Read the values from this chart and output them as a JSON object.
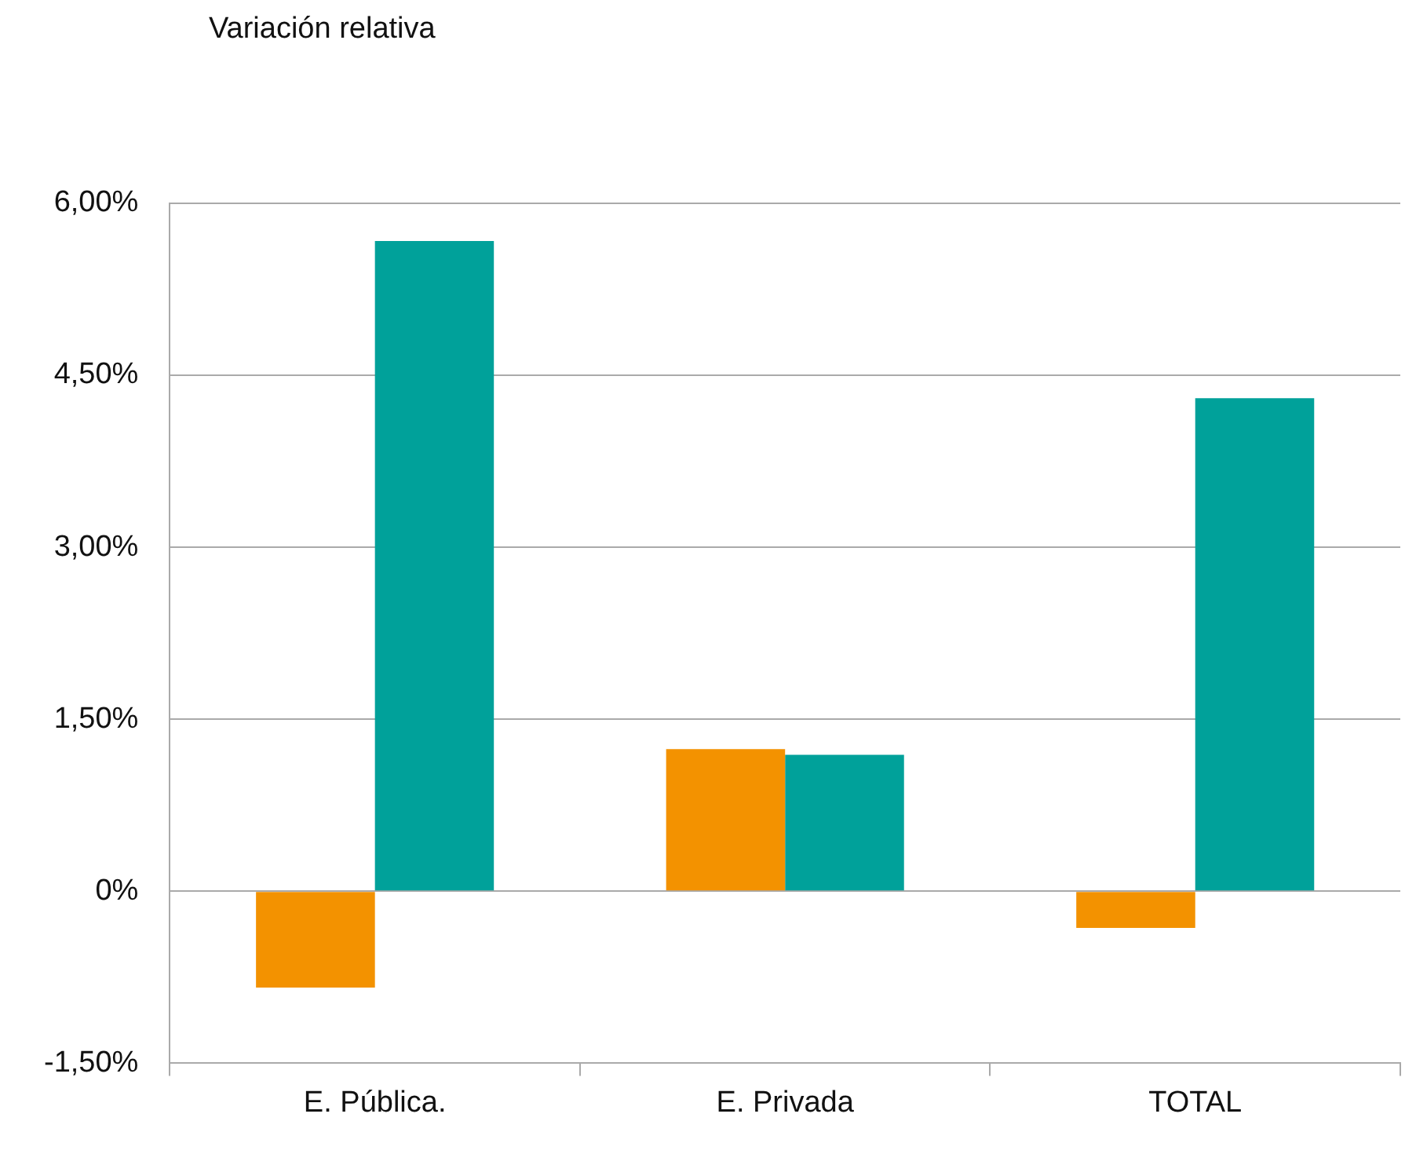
{
  "chart_data": {
    "type": "bar",
    "title": "Variación relativa",
    "categories": [
      "E. Pública.",
      "E. Privada",
      "TOTAL"
    ],
    "series": [
      {
        "color": "#f39200",
        "values": [
          -0.84,
          1.24,
          -0.32
        ]
      },
      {
        "color": "#00a19a",
        "values": [
          5.67,
          1.19,
          4.3
        ]
      }
    ],
    "ylim": [
      -1.5,
      6
    ],
    "yticks": [
      {
        "value": -1.5,
        "label": "-1,50%"
      },
      {
        "value": 0,
        "label": "0%"
      },
      {
        "value": 1.5,
        "label": "1,50%"
      },
      {
        "value": 3,
        "label": "3,00%"
      },
      {
        "value": 4.5,
        "label": "4,50%"
      },
      {
        "value": 6,
        "label": "6,00%"
      }
    ],
    "grid": "y",
    "legend": false
  }
}
